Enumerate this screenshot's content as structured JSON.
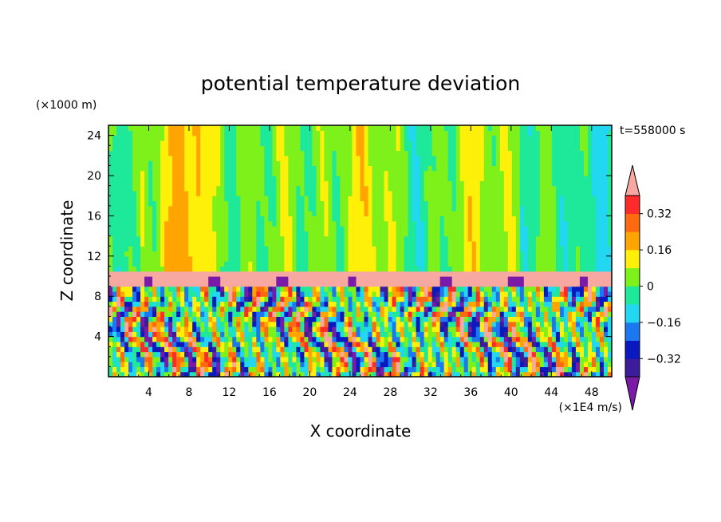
{
  "chart_data": {
    "type": "heatmap",
    "title": "potential temperature deviation",
    "xlabel": "X coordinate",
    "ylabel": "Z coordinate",
    "x_unit": "(×1E4 m/s)",
    "y_unit": "(×1000 m)",
    "time_label": "t=558000 s",
    "xlim": [
      0,
      50
    ],
    "ylim": [
      0,
      25
    ],
    "x_ticks": [
      4,
      8,
      12,
      16,
      20,
      24,
      28,
      32,
      36,
      40,
      44,
      48
    ],
    "y_ticks": [
      4,
      8,
      12,
      16,
      20,
      24
    ],
    "colorbar": {
      "levels": [
        -0.4,
        -0.32,
        -0.24,
        -0.16,
        -0.08,
        0,
        0.08,
        0.16,
        0.24,
        0.32,
        0.4
      ],
      "tick_labels": [
        "0.32",
        "0.16",
        "0",
        "−0.16",
        "−0.32"
      ],
      "tick_values": [
        0.32,
        0.16,
        0,
        -0.16,
        -0.32
      ],
      "colors": [
        "#7a1aa8",
        "#3a1c9c",
        "#0a18c0",
        "#1c78f0",
        "#22d8f0",
        "#1ee89a",
        "#7ef01a",
        "#fff00a",
        "#ffa400",
        "#ff6a10",
        "#ff2a2a",
        "#f7a8a0"
      ],
      "extend": "both"
    },
    "regions": {
      "upper_layer_range": [
        10.5,
        25
      ],
      "upper_layer_typical_value": 0.04,
      "inversion_band": [
        9,
        10.5
      ],
      "inversion_value": 0.45,
      "convective_layer_range": [
        0,
        9
      ],
      "convective_value_range": [
        -0.45,
        0.4
      ]
    }
  }
}
